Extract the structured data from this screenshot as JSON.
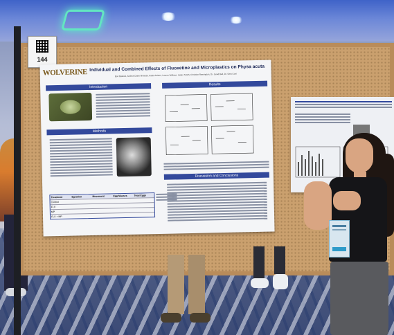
{
  "badge": {
    "number": "144"
  },
  "poster": {
    "title": "Individual and Combined Effects of Fluoxetine and Microplastics on Physa acuta",
    "logo_text": "WOLVERINE",
    "authors": "Bori Batashi, Andrea Claire Miranda, Kayla Ashton, Lauren Wallace, Jaden Smith, Christian Remington, Dr. Jared Bell, Dr. Sara Coel",
    "sections": {
      "introduction": "Introduction",
      "methods": "Methods",
      "results": "Results",
      "discussion": "Discussion and Conclusions"
    },
    "table": {
      "headers": [
        "Treatment",
        "Egestion",
        "Movement",
        "Egg Masses",
        "Total Eggs"
      ],
      "rows": [
        "Control",
        "FLX",
        "MP",
        "FLX + MP"
      ]
    }
  },
  "colors": {
    "poster_band": "#33499c",
    "board_cork": "#caa06e",
    "lanyard": "#d8e6ef"
  }
}
